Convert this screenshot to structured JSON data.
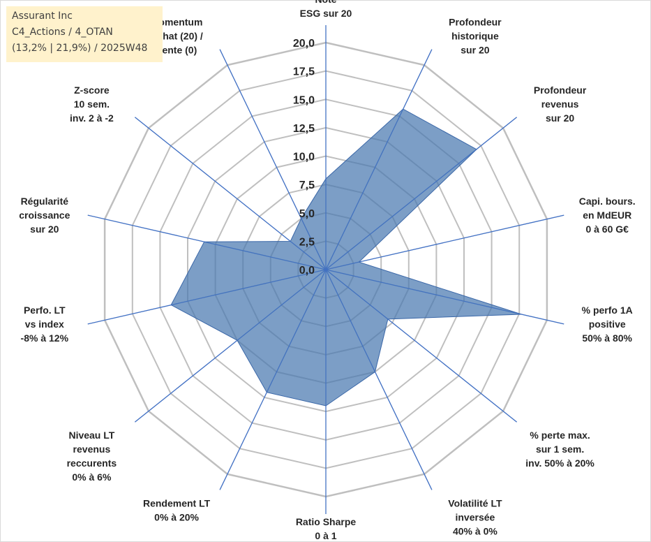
{
  "info": {
    "line1": "Assurant Inc",
    "line2": "C4_Actions / 4_OTAN",
    "line3": "(13,2% | 21,9%) / 2025W48"
  },
  "chart_data": {
    "type": "radar",
    "title": "",
    "rmax": 20,
    "ticks": [
      "0,0",
      "2,5",
      "5,0",
      "7,5",
      "10,0",
      "12,5",
      "15,0",
      "17,5",
      "20,0"
    ],
    "axes": [
      {
        "lines": [
          "Note",
          "ESG sur 20"
        ],
        "value": 8
      },
      {
        "lines": [
          "Profondeur",
          "historique",
          "sur 20"
        ],
        "value": 15.7
      },
      {
        "lines": [
          "Profondeur",
          "revenus",
          "sur 20"
        ],
        "value": 17.0
      },
      {
        "lines": [
          "Capi. bours.",
          "en MdEUR",
          "0 à 60 G€"
        ],
        "value": 3.0
      },
      {
        "lines": [
          "% perfo 1A",
          "positive",
          "50% à 80%"
        ],
        "value": 17.7
      },
      {
        "lines": [
          "% perte max.",
          "sur 1 sem.",
          "inv. 50% à 20%"
        ],
        "value": 7.0
      },
      {
        "lines": [
          "Volatilité LT",
          "inversée",
          "40% à 0%"
        ],
        "value": 10.0
      },
      {
        "lines": [
          "Ratio Sharpe",
          "0 à 1"
        ],
        "value": 12.0
      },
      {
        "lines": [
          "Rendement LT",
          "0% à 20%"
        ],
        "value": 12.0
      },
      {
        "lines": [
          "Niveau LT",
          "revenus",
          "reccurents",
          "0% à 6%"
        ],
        "value": 10.0
      },
      {
        "lines": [
          "Perfo. LT",
          "vs index",
          "-8% à 12%"
        ],
        "value": 14.0
      },
      {
        "lines": [
          "Régularité",
          "croissance",
          "sur 20"
        ],
        "value": 11.0
      },
      {
        "lines": [
          "Z-score",
          "10 sem.",
          "inv. 2 à -2"
        ],
        "value": 4.0
      },
      {
        "lines": [
          "Momentum",
          "Achat (20) /",
          "Vente (0)"
        ],
        "value": 5.0
      }
    ],
    "colors": {
      "fill": "#4a78b0",
      "stroke": "#3a67a8",
      "spoke": "#4472c4",
      "grid": "#bfbfbf"
    }
  }
}
